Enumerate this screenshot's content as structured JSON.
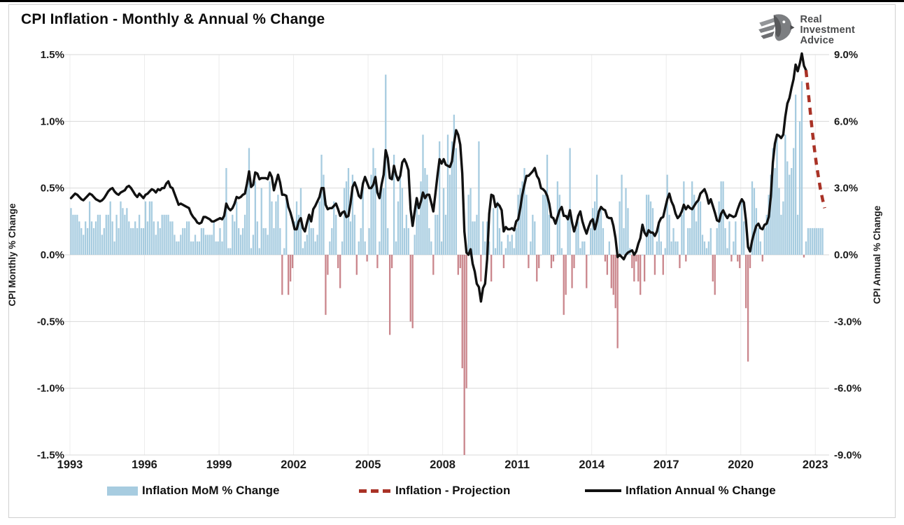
{
  "page": {
    "title": "CPI Inflation - Monthly & Annual % Change"
  },
  "logo": {
    "lines": [
      "Real",
      "Investment",
      "Advice"
    ]
  },
  "chart_data": {
    "type": "bar",
    "title": "CPI Inflation - Monthly & Annual % Change",
    "x_axis": {
      "tick_values": [
        1993,
        1996,
        1999,
        2002,
        2005,
        2008,
        2011,
        2014,
        2017,
        2020,
        2023
      ],
      "min": 1993,
      "max": 2023.5,
      "vertical_grid": true
    },
    "left_axis": {
      "title": "CPI Monthly % Change",
      "tick_labels": [
        "1.5%",
        "1.0%",
        "0.5%",
        "0.0%",
        "-0.5%",
        "-1.0%",
        "-1.5%"
      ],
      "tick_values": [
        1.5,
        1.0,
        0.5,
        0.0,
        -0.5,
        -1.0,
        -1.5
      ],
      "min": -1.5,
      "max": 1.5
    },
    "right_axis": {
      "title": "CPI Annual % Change",
      "tick_labels": [
        "9.0%",
        "6.0%",
        "3.0%",
        "0.0%",
        "-3.0%",
        "-6.0%",
        "-9.0%"
      ],
      "tick_values": [
        9.0,
        6.0,
        3.0,
        0.0,
        -3.0,
        -6.0,
        -9.0
      ],
      "min": -9.0,
      "max": 9.0
    },
    "series": [
      {
        "name": "Inflation MoM % Change",
        "type": "bar",
        "axis": "left",
        "start": "1993-01",
        "values": [
          0.35,
          0.3,
          0.3,
          0.3,
          0.25,
          0.2,
          0.15,
          0.25,
          0.2,
          0.4,
          0.25,
          0.2,
          0.25,
          0.3,
          0.3,
          0.15,
          0.2,
          0.3,
          0.3,
          0.4,
          0.25,
          0.1,
          0.3,
          0.2,
          0.4,
          0.35,
          0.3,
          0.35,
          0.25,
          0.2,
          0.2,
          0.25,
          0.2,
          0.3,
          0.2,
          0.2,
          0.4,
          0.25,
          0.4,
          0.4,
          0.25,
          0.15,
          0.25,
          0.2,
          0.3,
          0.3,
          0.3,
          0.3,
          0.25,
          0.25,
          0.15,
          0.1,
          0.1,
          0.15,
          0.2,
          0.2,
          0.25,
          0.25,
          0.1,
          0.1,
          0.15,
          0.1,
          0.1,
          0.2,
          0.2,
          0.15,
          0.15,
          0.15,
          0.15,
          0.25,
          0.1,
          0.1,
          0.2,
          0.1,
          0.3,
          0.65,
          0.05,
          0.05,
          0.3,
          0.25,
          0.4,
          0.2,
          0.15,
          0.2,
          0.3,
          0.55,
          0.8,
          0.05,
          0.15,
          0.55,
          0.25,
          0.05,
          0.5,
          0.2,
          0.2,
          0.15,
          0.55,
          0.4,
          0.2,
          0.4,
          0.45,
          0.2,
          -0.3,
          0.05,
          0.45,
          -0.3,
          -0.2,
          -0.1,
          0.25,
          0.4,
          0.3,
          0.5,
          0.05,
          0.1,
          0.15,
          0.3,
          0.2,
          0.2,
          0.1,
          0.15,
          0.4,
          0.75,
          0.6,
          -0.45,
          -0.15,
          0.1,
          0.2,
          0.4,
          0.3,
          -0.1,
          -0.25,
          0.1,
          0.5,
          0.55,
          0.65,
          0.25,
          0.6,
          0.3,
          -0.15,
          0.1,
          0.2,
          0.55,
          0.1,
          -0.05,
          0.2,
          0.6,
          0.8,
          0.65,
          -0.1,
          0.1,
          0.5,
          0.5,
          1.35,
          0.2,
          -0.6,
          -0.1,
          0.75,
          0.1,
          0.4,
          0.6,
          0.5,
          0.2,
          0.3,
          0.2,
          -0.5,
          -0.55,
          0.15,
          0.4,
          0.3,
          0.55,
          0.9,
          0.65,
          0.6,
          0.2,
          0.1,
          -0.15,
          0.3,
          0.3,
          0.85,
          0.1,
          0.5,
          0.3,
          0.9,
          0.6,
          0.85,
          1.05,
          0.8,
          -0.15,
          -0.1,
          -0.85,
          -1.7,
          -1.0,
          0.45,
          0.5,
          0.25,
          0.25,
          0.3,
          0.85,
          -0.2,
          0.25,
          0.1,
          0.25,
          0.1,
          -0.2,
          0.35,
          0.05,
          0.4,
          0.2,
          0.1,
          -0.1,
          0.05,
          0.15,
          0.1,
          0.15,
          0.05,
          0.2,
          0.45,
          0.5,
          0.55,
          0.65,
          0.45,
          -0.1,
          0.1,
          0.3,
          0.25,
          -0.2,
          -0.1,
          0.0,
          0.45,
          0.45,
          0.75,
          0.3,
          -0.1,
          -0.05,
          0.0,
          0.55,
          0.45,
          0.05,
          -0.45,
          -0.3,
          0.3,
          0.8,
          -0.25,
          -0.1,
          0.2,
          0.25,
          0.05,
          0.1,
          0.1,
          -0.25,
          0.0,
          0.2,
          0.35,
          0.4,
          0.6,
          0.3,
          0.35,
          0.2,
          -0.05,
          -0.15,
          0.1,
          -0.25,
          -0.3,
          -0.4,
          -0.7,
          0.4,
          0.6,
          0.2,
          0.5,
          0.35,
          0.05,
          -0.1,
          -0.2,
          -0.05,
          -0.2,
          -0.3,
          0.0,
          -0.2,
          0.45,
          0.45,
          0.4,
          0.35,
          -0.15,
          0.1,
          0.25,
          0.1,
          -0.15,
          0.05,
          0.6,
          0.3,
          0.1,
          0.2,
          0.1,
          0.1,
          -0.1,
          0.3,
          0.55,
          -0.05,
          0.2,
          0.2,
          0.55,
          0.45,
          0.25,
          0.4,
          0.4,
          0.15,
          0.1,
          0.05,
          0.1,
          0.2,
          -0.2,
          -0.3,
          0.2,
          0.4,
          0.55,
          0.55,
          0.2,
          0.05,
          0.25,
          -0.05,
          0.1,
          0.25,
          -0.05,
          -0.1,
          0.4,
          0.25,
          -0.4,
          -0.8,
          -0.1,
          0.55,
          0.5,
          0.35,
          0.2,
          0.1,
          -0.05,
          0.2,
          0.3,
          0.45,
          0.6,
          0.8,
          0.65,
          0.9,
          0.5,
          0.3,
          0.4,
          0.9,
          0.7,
          0.6,
          0.65,
          0.8,
          1.2,
          0.3,
          1.0,
          1.3,
          -0.02
        ],
        "projected_values": [
          0.1,
          0.2,
          0.2,
          0.2,
          0.2,
          0.2,
          0.2,
          0.2,
          0.2
        ]
      },
      {
        "name": "Inflation Annual % Change",
        "type": "line",
        "axis": "right",
        "start": "1993-01",
        "values": [
          2.55,
          2.65,
          2.75,
          2.7,
          2.6,
          2.5,
          2.45,
          2.55,
          2.65,
          2.75,
          2.7,
          2.6,
          2.5,
          2.45,
          2.4,
          2.45,
          2.55,
          2.7,
          2.85,
          2.95,
          3.0,
          2.85,
          2.75,
          2.7,
          2.8,
          2.85,
          2.9,
          3.05,
          3.1,
          3.0,
          2.85,
          2.7,
          2.6,
          2.75,
          2.65,
          2.55,
          2.7,
          2.75,
          2.85,
          2.95,
          2.9,
          2.8,
          2.95,
          2.9,
          3.0,
          3.0,
          3.2,
          3.3,
          3.05,
          3.0,
          2.75,
          2.5,
          2.25,
          2.3,
          2.25,
          2.2,
          2.15,
          2.1,
          1.85,
          1.7,
          1.6,
          1.45,
          1.4,
          1.45,
          1.7,
          1.7,
          1.65,
          1.6,
          1.5,
          1.5,
          1.55,
          1.6,
          1.65,
          1.6,
          1.75,
          2.3,
          2.1,
          2.0,
          2.1,
          2.3,
          2.6,
          2.55,
          2.6,
          2.7,
          2.75,
          3.2,
          3.75,
          3.05,
          3.15,
          3.7,
          3.65,
          3.4,
          3.45,
          3.45,
          3.45,
          3.4,
          3.7,
          3.5,
          2.9,
          3.25,
          3.6,
          3.25,
          2.7,
          2.7,
          2.65,
          2.15,
          1.9,
          1.55,
          1.15,
          1.15,
          1.5,
          1.65,
          1.2,
          1.05,
          1.45,
          1.8,
          1.5,
          2.05,
          2.2,
          2.4,
          2.6,
          3.0,
          3.0,
          2.25,
          2.05,
          2.1,
          2.1,
          2.2,
          2.3,
          2.05,
          1.75,
          1.9,
          1.95,
          1.7,
          1.75,
          2.3,
          3.05,
          3.25,
          3.0,
          2.65,
          2.55,
          3.2,
          3.5,
          3.25,
          3.0,
          3.0,
          3.15,
          3.5,
          2.8,
          2.55,
          3.15,
          3.6,
          4.7,
          4.35,
          3.45,
          3.4,
          4.0,
          3.6,
          3.35,
          3.55,
          4.15,
          4.3,
          4.1,
          3.8,
          2.05,
          1.3,
          1.95,
          2.55,
          2.1,
          2.4,
          2.8,
          2.55,
          2.7,
          2.7,
          2.35,
          1.95,
          2.75,
          3.55,
          4.3,
          4.1,
          4.3,
          4.05,
          4.0,
          3.95,
          4.2,
          5.0,
          5.6,
          5.4,
          4.95,
          3.65,
          1.05,
          0.1,
          0.0,
          0.25,
          -0.4,
          -0.75,
          -1.3,
          -1.45,
          -2.1,
          -1.5,
          -1.3,
          -0.2,
          1.85,
          2.7,
          2.65,
          2.15,
          2.3,
          2.2,
          2.0,
          1.05,
          1.25,
          1.15,
          1.15,
          1.2,
          1.1,
          1.5,
          1.6,
          2.1,
          2.7,
          3.15,
          3.55,
          3.55,
          3.65,
          3.75,
          3.9,
          3.55,
          3.4,
          3.0,
          2.95,
          2.85,
          2.65,
          2.3,
          1.7,
          1.65,
          1.4,
          1.7,
          2.0,
          2.15,
          1.75,
          1.75,
          1.6,
          2.0,
          1.45,
          1.05,
          1.35,
          1.75,
          1.95,
          1.5,
          1.2,
          0.95,
          1.25,
          1.5,
          1.6,
          1.15,
          1.5,
          1.95,
          2.15,
          2.05,
          2.0,
          1.7,
          1.65,
          1.65,
          1.3,
          0.75,
          -0.1,
          0.0,
          -0.1,
          -0.2,
          0.0,
          0.1,
          0.15,
          0.2,
          0.0,
          0.15,
          0.5,
          0.75,
          1.35,
          1.0,
          0.85,
          1.1,
          1.0,
          1.0,
          0.85,
          1.05,
          1.45,
          1.65,
          1.7,
          2.1,
          2.5,
          2.75,
          2.4,
          2.2,
          1.85,
          1.65,
          1.75,
          1.95,
          2.25,
          2.05,
          2.2,
          2.1,
          2.05,
          2.2,
          2.35,
          2.45,
          2.75,
          2.85,
          2.95,
          2.7,
          2.3,
          2.5,
          2.2,
          1.9,
          1.55,
          1.5,
          1.85,
          2.0,
          1.8,
          1.65,
          1.8,
          1.75,
          1.7,
          1.75,
          2.05,
          2.3,
          2.5,
          2.35,
          1.55,
          0.35,
          0.15,
          0.65,
          1.0,
          1.3,
          1.4,
          1.2,
          1.15,
          1.35,
          1.4,
          1.7,
          2.6,
          4.15,
          5.0,
          5.4,
          5.35,
          5.25,
          5.4,
          6.2,
          6.8,
          7.05,
          7.5,
          7.9,
          8.55,
          8.25,
          8.6,
          9.05,
          8.5,
          8.3
        ]
      },
      {
        "name": "Inflation - Projection",
        "type": "dashed-line",
        "axis": "right",
        "start": "2022-08",
        "values": [
          8.3,
          7.4,
          6.5,
          5.6,
          4.8,
          4.1,
          3.5,
          2.95,
          2.5,
          2.1
        ]
      }
    ],
    "legend": [
      {
        "label": "Inflation MoM % Change",
        "swatch": "bar"
      },
      {
        "label": "Inflation - Projection",
        "swatch": "dash"
      },
      {
        "label": "Inflation Annual % Change",
        "swatch": "line"
      }
    ],
    "colors": {
      "bar_positive": "#A7CCE0",
      "bar_negative": "#CA868C",
      "annual_line": "#111111",
      "projection": "#A93226",
      "grid": "#D9D9D9",
      "grid_vertical": "#ECECEC",
      "tick_text": "#1a1a1a"
    }
  }
}
